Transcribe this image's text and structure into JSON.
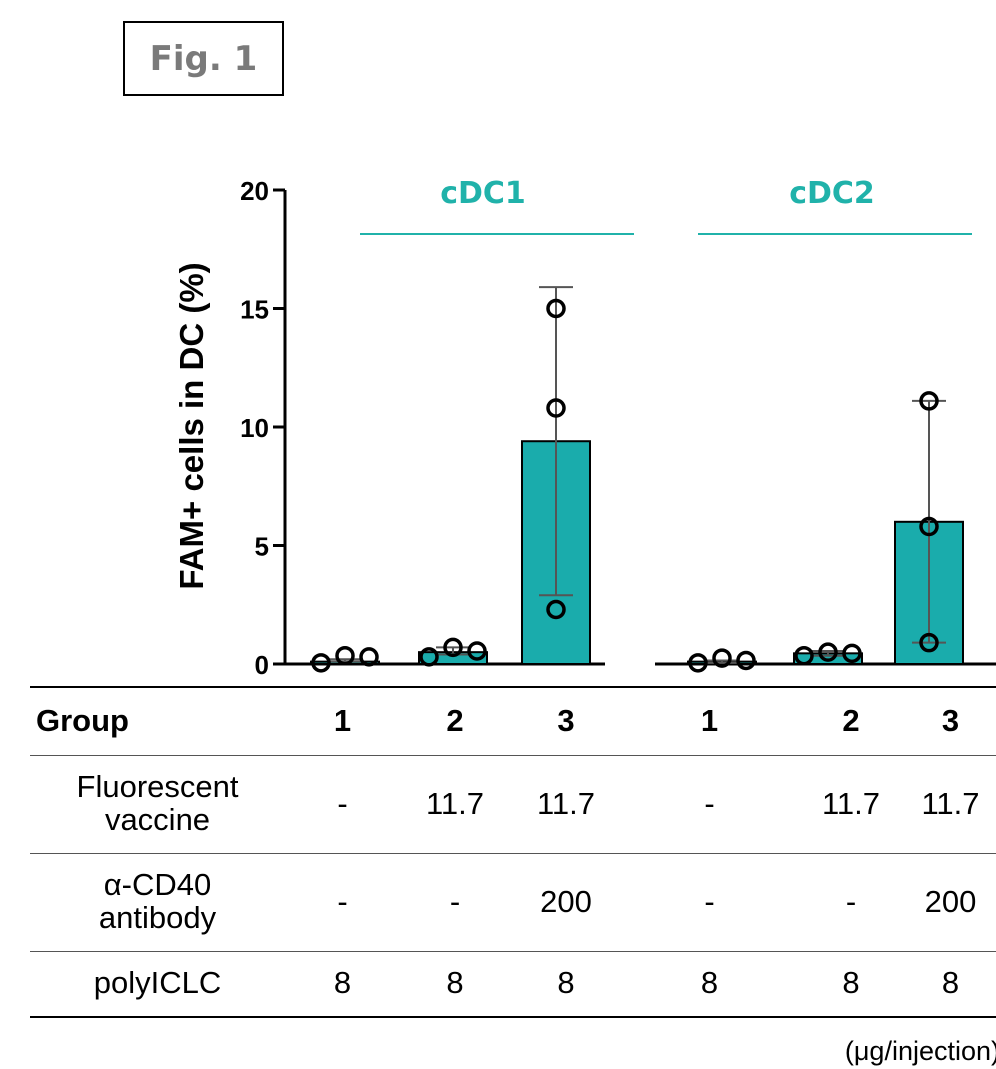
{
  "figure_label": "Fig. 1",
  "chart_data": {
    "type": "bar",
    "ylabel": "FAM+ cells in DC (%)",
    "ylim": [
      0,
      20
    ],
    "yticks": [
      0,
      5,
      10,
      15,
      20
    ],
    "bar_color": "#1aacac",
    "accent_color": "#20b2aa",
    "panels": [
      {
        "name": "cDC1",
        "categories": [
          "1",
          "2",
          "3"
        ],
        "values": [
          0.1,
          0.5,
          9.4
        ],
        "error_low": [
          0.1,
          0.4,
          2.9
        ],
        "error_high": [
          0.2,
          0.7,
          15.9
        ],
        "points": [
          [
            0.05,
            0.35,
            0.3
          ],
          [
            0.3,
            0.7,
            0.55
          ],
          [
            15.0,
            10.8,
            2.3
          ]
        ]
      },
      {
        "name": "cDC2",
        "categories": [
          "1",
          "2",
          "3"
        ],
        "values": [
          0.1,
          0.45,
          6.0
        ],
        "error_low": [
          0.05,
          0.35,
          0.9
        ],
        "error_high": [
          0.15,
          0.55,
          11.1
        ],
        "points": [
          [
            0.05,
            0.25,
            0.15
          ],
          [
            0.35,
            0.5,
            0.45
          ],
          [
            11.1,
            5.8,
            0.9
          ]
        ]
      }
    ]
  },
  "table": {
    "header": {
      "label": "Group",
      "cells": [
        "1",
        "2",
        "3",
        "1",
        "2",
        "3"
      ]
    },
    "rows": [
      {
        "label_line1": "Fluorescent",
        "label_line2": "vaccine",
        "cells": [
          "-",
          "11.7",
          "11.7",
          "-",
          "11.7",
          "11.7"
        ]
      },
      {
        "label_line1": "α-CD40",
        "label_line2": "antibody",
        "cells": [
          "-",
          "-",
          "200",
          "-",
          "-",
          "200"
        ]
      },
      {
        "label_line1": "polyICLC",
        "label_line2": "",
        "cells": [
          "8",
          "8",
          "8",
          "8",
          "8",
          "8"
        ]
      }
    ]
  },
  "units_note": "(μg/injection)"
}
